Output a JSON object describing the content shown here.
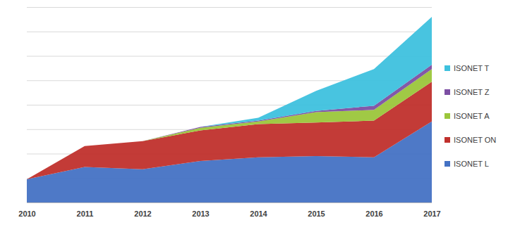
{
  "chart_data": {
    "type": "area",
    "stacked": true,
    "grid": true,
    "legend": "right",
    "tick_labels": "x",
    "x": [
      2010,
      2011,
      2012,
      2013,
      2014,
      2015,
      2016,
      2017
    ],
    "xlim": [
      2010,
      2017
    ],
    "xticks": [
      2010,
      2011,
      2012,
      2013,
      2014,
      2015,
      2016,
      2017
    ],
    "ylim": [
      0,
      80
    ],
    "yticks": [
      0,
      10,
      20,
      30,
      40,
      50,
      60,
      70,
      80
    ],
    "series": [
      {
        "name": "ISONET L",
        "color": "#4472c4",
        "values": [
          9.5,
          14.5,
          13.6,
          17,
          18.5,
          19,
          18.5,
          33.2
        ]
      },
      {
        "name": "ISONET ON",
        "color": "#c0302c",
        "values": [
          0,
          8.6,
          11.5,
          12.5,
          13.6,
          13.7,
          15,
          16.2
        ]
      },
      {
        "name": "ISONET A",
        "color": "#9bc63b",
        "values": [
          0,
          0,
          0,
          1.1,
          1.1,
          4.3,
          4.4,
          5.2
        ]
      },
      {
        "name": "ISONET Z",
        "color": "#7c4fa3",
        "values": [
          0,
          0,
          0,
          0.3,
          0.3,
          0.5,
          1.7,
          1.8
        ]
      },
      {
        "name": "ISONET T",
        "color": "#3ec1de",
        "values": [
          0,
          0,
          0,
          0,
          1.2,
          8.2,
          15,
          19.6
        ]
      }
    ]
  }
}
